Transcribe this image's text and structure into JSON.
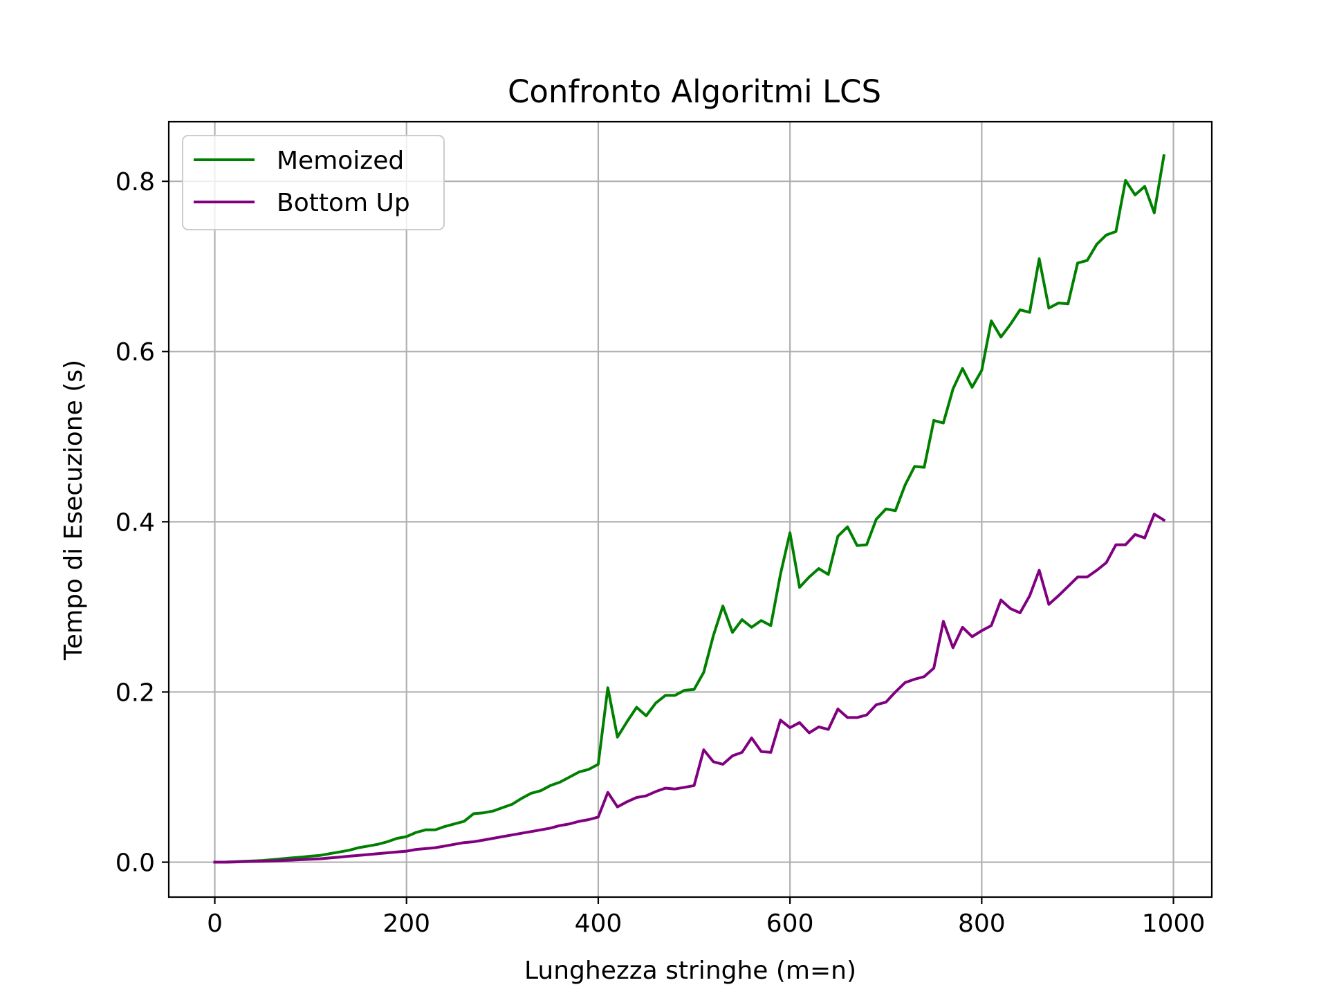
{
  "chart_data": {
    "type": "line",
    "title": "Confronto Algoritmi LCS",
    "xlabel": "Lunghezza stringhe (m=n)",
    "ylabel": "Tempo di Esecuzione (s)",
    "xlim": [
      -48,
      1040
    ],
    "ylim": [
      -0.041,
      0.87
    ],
    "xticks": [
      0,
      200,
      400,
      600,
      800,
      1000
    ],
    "xtick_labels": [
      "0",
      "200",
      "400",
      "600",
      "800",
      "1000"
    ],
    "yticks": [
      0.0,
      0.2,
      0.4,
      0.6,
      0.8
    ],
    "ytick_labels": [
      "0.0",
      "0.2",
      "0.4",
      "0.6",
      "0.8"
    ],
    "grid": true,
    "legend_position": "top-left",
    "x": [
      0,
      10,
      20,
      30,
      40,
      50,
      60,
      70,
      80,
      90,
      100,
      110,
      120,
      130,
      140,
      150,
      160,
      170,
      180,
      190,
      200,
      210,
      220,
      230,
      240,
      250,
      260,
      270,
      280,
      290,
      300,
      310,
      320,
      330,
      340,
      350,
      360,
      370,
      380,
      390,
      400,
      410,
      420,
      430,
      440,
      450,
      460,
      470,
      480,
      490,
      500,
      510,
      520,
      530,
      540,
      550,
      560,
      570,
      580,
      590,
      600,
      610,
      620,
      630,
      640,
      650,
      660,
      670,
      680,
      690,
      700,
      710,
      720,
      730,
      740,
      750,
      760,
      770,
      780,
      790,
      800,
      810,
      820,
      830,
      840,
      850,
      860,
      870,
      880,
      890,
      900,
      910,
      920,
      930,
      940,
      950,
      960,
      970,
      980,
      990
    ],
    "series": [
      {
        "name": "Memoized",
        "color": "#008000",
        "values": [
          0.0,
          0.0,
          0.0005,
          0.001,
          0.0015,
          0.002,
          0.003,
          0.004,
          0.005,
          0.006,
          0.007,
          0.008,
          0.01,
          0.012,
          0.014,
          0.017,
          0.019,
          0.021,
          0.024,
          0.028,
          0.03,
          0.035,
          0.038,
          0.038,
          0.042,
          0.045,
          0.048,
          0.057,
          0.058,
          0.06,
          0.064,
          0.068,
          0.075,
          0.081,
          0.084,
          0.09,
          0.094,
          0.1,
          0.106,
          0.109,
          0.115,
          0.205,
          0.147,
          0.165,
          0.182,
          0.172,
          0.187,
          0.196,
          0.196,
          0.202,
          0.203,
          0.223,
          0.266,
          0.301,
          0.27,
          0.285,
          0.276,
          0.284,
          0.278,
          0.338,
          0.387,
          0.323,
          0.335,
          0.345,
          0.338,
          0.383,
          0.394,
          0.372,
          0.373,
          0.403,
          0.415,
          0.413,
          0.443,
          0.465,
          0.464,
          0.519,
          0.516,
          0.556,
          0.58,
          0.558,
          0.578,
          0.636,
          0.617,
          0.632,
          0.649,
          0.646,
          0.709,
          0.651,
          0.657,
          0.656,
          0.704,
          0.707,
          0.726,
          0.737,
          0.741,
          0.801,
          0.784,
          0.794,
          0.763,
          0.83
        ]
      },
      {
        "name": "Bottom Up",
        "color": "#800080",
        "values": [
          0.0,
          0.0,
          0.0003,
          0.0006,
          0.0009,
          0.0012,
          0.0016,
          0.002,
          0.0025,
          0.003,
          0.0035,
          0.004,
          0.005,
          0.006,
          0.007,
          0.008,
          0.009,
          0.01,
          0.011,
          0.012,
          0.013,
          0.015,
          0.016,
          0.017,
          0.019,
          0.021,
          0.023,
          0.024,
          0.026,
          0.028,
          0.03,
          0.032,
          0.034,
          0.036,
          0.038,
          0.04,
          0.043,
          0.045,
          0.048,
          0.05,
          0.053,
          0.082,
          0.065,
          0.071,
          0.076,
          0.078,
          0.083,
          0.087,
          0.086,
          0.088,
          0.09,
          0.132,
          0.118,
          0.115,
          0.125,
          0.129,
          0.146,
          0.13,
          0.129,
          0.167,
          0.158,
          0.164,
          0.152,
          0.159,
          0.156,
          0.18,
          0.17,
          0.17,
          0.173,
          0.185,
          0.188,
          0.2,
          0.211,
          0.215,
          0.218,
          0.228,
          0.283,
          0.252,
          0.276,
          0.265,
          0.272,
          0.278,
          0.308,
          0.298,
          0.293,
          0.313,
          0.343,
          0.303,
          0.313,
          0.324,
          0.335,
          0.335,
          0.343,
          0.352,
          0.373,
          0.373,
          0.385,
          0.381,
          0.409,
          0.402
        ]
      }
    ]
  }
}
